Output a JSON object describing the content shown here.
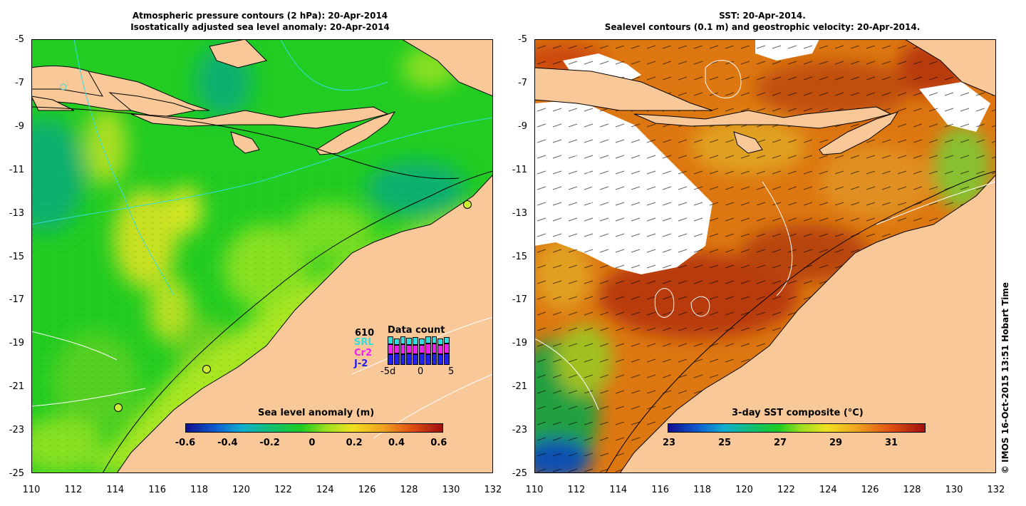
{
  "left_panel": {
    "title_line1": "Atmospheric pressure contours (2 hPa): 20-Apr-2014",
    "title_line2": "Isostatically adjusted sea level anomaly: 20-Apr-2014",
    "colorbar_title": "Sea level anomaly (m)",
    "colorbar_ticks": [
      "-0.6",
      "-0.4",
      "-0.2",
      "0",
      "0.2",
      "0.4",
      "0.6"
    ],
    "inset": {
      "title": "Data count",
      "total": "610",
      "satellites": [
        {
          "label": "SRL",
          "color": "#33dddd"
        },
        {
          "label": "Cr2",
          "color": "#ee22ee"
        },
        {
          "label": "J-2",
          "color": "#2222ee"
        }
      ],
      "axis_labels": [
        "-5d",
        "0",
        "5"
      ],
      "bars": [
        {
          "j2": 0.38,
          "cr2": 0.34,
          "srl": 0.28
        },
        {
          "j2": 0.4,
          "cr2": 0.3,
          "srl": 0.22
        },
        {
          "j2": 0.38,
          "cr2": 0.34,
          "srl": 0.28
        },
        {
          "j2": 0.4,
          "cr2": 0.3,
          "srl": 0.24
        },
        {
          "j2": 0.38,
          "cr2": 0.32,
          "srl": 0.28
        },
        {
          "j2": 0.4,
          "cr2": 0.3,
          "srl": 0.22
        },
        {
          "j2": 0.38,
          "cr2": 0.36,
          "srl": 0.26
        },
        {
          "j2": 0.4,
          "cr2": 0.34,
          "srl": 0.26
        },
        {
          "j2": 0.38,
          "cr2": 0.32,
          "srl": 0.22
        },
        {
          "j2": 0.4,
          "cr2": 0.34,
          "srl": 0.24
        }
      ]
    }
  },
  "right_panel": {
    "title_line1": "SST: 20-Apr-2014.",
    "title_line2": "Sealevel contours (0.1 m) and geostrophic velocity: 20-Apr-2014.",
    "colorbar_title": "3-day SST composite (°C)",
    "colorbar_ticks": [
      "23",
      "25",
      "27",
      "29",
      "31"
    ]
  },
  "axes": {
    "lat_labels": [
      "-5",
      "-7",
      "-9",
      "-11",
      "-13",
      "-15",
      "-17",
      "-19",
      "-21",
      "-23",
      "-25"
    ],
    "lon_labels": [
      "110",
      "112",
      "114",
      "116",
      "118",
      "120",
      "122",
      "124",
      "126",
      "128",
      "130",
      "132"
    ]
  },
  "credit": "© IMOS 16-Oct-2015 13:51 Hobart Time",
  "colors": {
    "land": "#f9c899",
    "sla_base": "#22cc22",
    "sst_base": "#dd7711",
    "cloud": "#ffffff"
  }
}
